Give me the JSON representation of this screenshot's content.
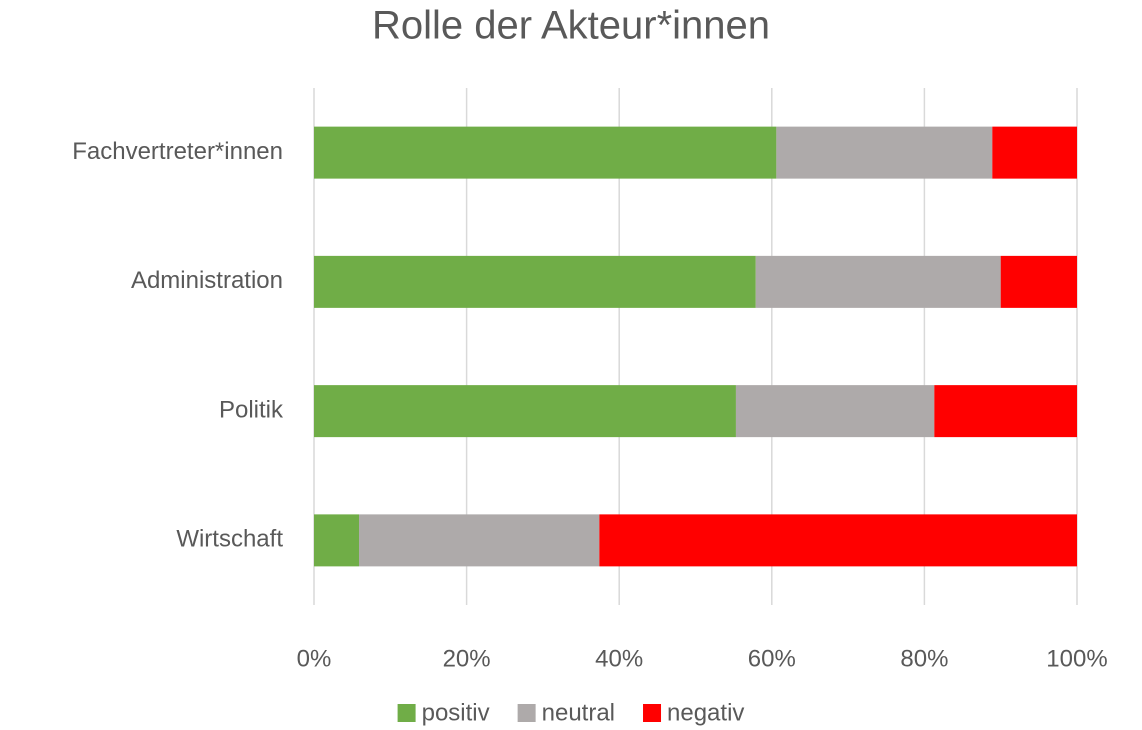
{
  "chart_data": {
    "type": "stacked_barh",
    "title": "Rolle der Akteur*innen",
    "categories": [
      "Fachvertreter*innen",
      "Administration",
      "Politik",
      "Wirtschaft"
    ],
    "series": [
      {
        "name": "positiv",
        "color": "#70ad47",
        "values": [
          60.6,
          57.9,
          55.3,
          5.9
        ]
      },
      {
        "name": "neutral",
        "color": "#aeaaaa",
        "values": [
          28.3,
          32.1,
          26.0,
          31.5
        ]
      },
      {
        "name": "negativ",
        "color": "#ff0000",
        "values": [
          11.1,
          10.0,
          18.7,
          62.6
        ]
      }
    ],
    "xlim": [
      0,
      100
    ],
    "xticks": [
      {
        "value": 0,
        "label": "0%"
      },
      {
        "value": 20,
        "label": "20%"
      },
      {
        "value": 40,
        "label": "40%"
      },
      {
        "value": 60,
        "label": "60%"
      },
      {
        "value": 80,
        "label": "80%"
      },
      {
        "value": 100,
        "label": "100%"
      }
    ],
    "grid": true,
    "legend": "bottom"
  }
}
